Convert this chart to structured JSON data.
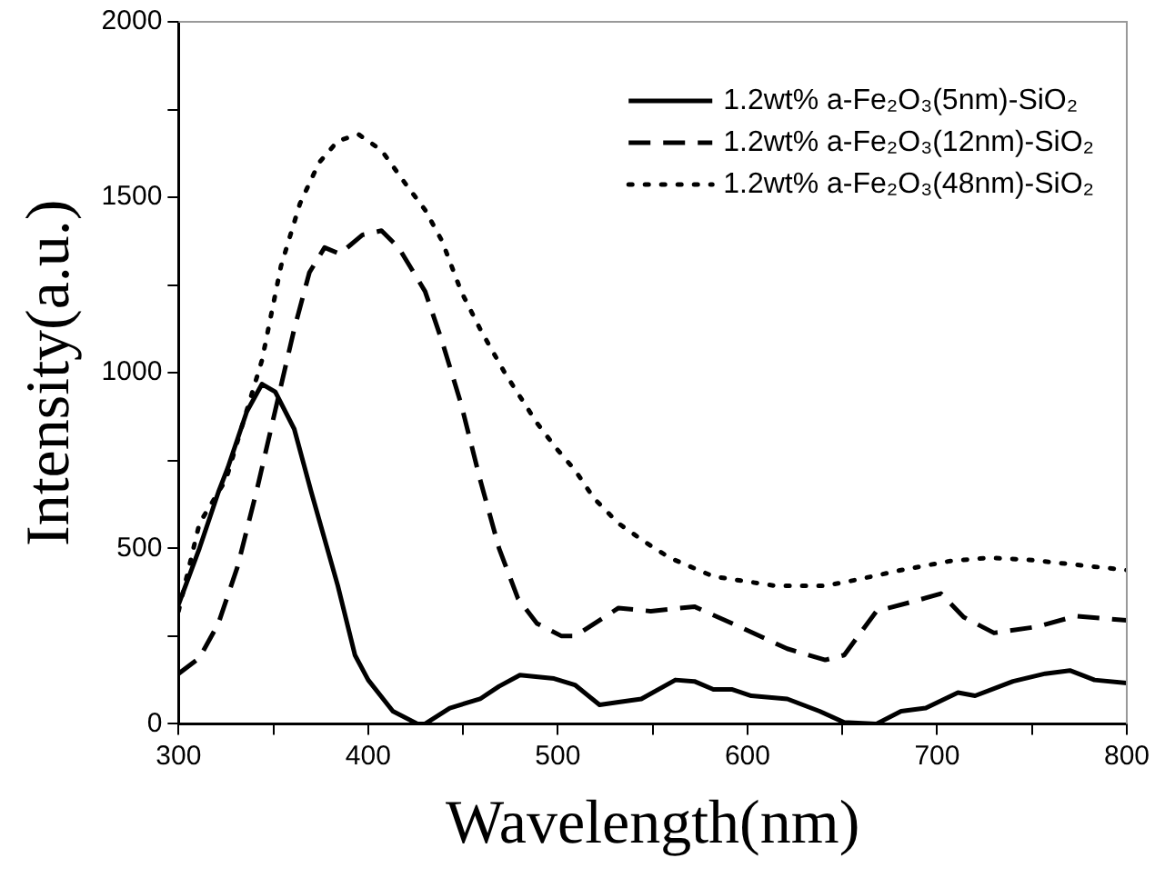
{
  "chart_data": {
    "type": "line",
    "xlabel": "Wavelength(nm)",
    "ylabel": "Intensity(a.u.)",
    "xlim": [
      300,
      800
    ],
    "xticks": [
      300,
      {
        "value": 350,
        "label": null
      },
      400,
      {
        "value": 450,
        "label": null
      },
      500,
      {
        "value": 550,
        "label": null
      },
      600,
      {
        "value": 650,
        "label": null
      },
      700,
      {
        "value": 750,
        "label": null
      },
      800
    ],
    "ylim": [
      0,
      2000
    ],
    "yticks": [
      0,
      {
        "value": 250,
        "label": null
      },
      500,
      {
        "value": 750,
        "label": null
      },
      1000,
      {
        "value": 1250,
        "label": null
      },
      1500,
      {
        "value": 1750,
        "label": null
      },
      2000
    ],
    "grid": false,
    "legend": "top right",
    "marker": "none",
    "series": [
      {
        "name": "1.2wt% a-Fe₂O₃(5nm)-SiO₂",
        "color": "#000000",
        "line_style": "solid",
        "x": [
          300,
          311,
          321,
          326,
          336,
          344,
          351,
          361,
          370,
          384,
          393,
          400,
          413,
          426,
          430,
          443,
          459,
          469,
          480,
          498,
          509,
          522,
          532,
          544,
          562,
          572,
          582,
          592,
          602,
          621,
          638,
          651,
          668,
          681,
          694,
          711,
          720,
          740,
          757,
          770,
          783,
          800
        ],
        "values": [
          340,
          500,
          660,
          730,
          890,
          968,
          946,
          840,
          660,
          393,
          196,
          125,
          36,
          0,
          0,
          45,
          71,
          107,
          139,
          129,
          111,
          54,
          62,
          71,
          125,
          121,
          98,
          98,
          80,
          71,
          36,
          4,
          0,
          36,
          45,
          89,
          80,
          121,
          143,
          152,
          125,
          116
        ]
      },
      {
        "name": "1.2wt% a-Fe₂O₃(12nm)-SiO₂",
        "color": "#000000",
        "line_style": "dashed",
        "x": [
          300,
          311,
          321,
          331,
          341,
          351,
          361,
          369,
          377,
          385,
          397,
          407,
          416,
          430,
          439,
          449,
          459,
          469,
          479,
          489,
          502,
          509,
          532,
          549,
          572,
          592,
          621,
          641,
          651,
          668,
          687,
          702,
          714,
          730,
          753,
          773,
          800
        ],
        "values": [
          143,
          188,
          286,
          446,
          660,
          893,
          1125,
          1286,
          1357,
          1339,
          1393,
          1405,
          1357,
          1232,
          1089,
          911,
          696,
          500,
          357,
          286,
          250,
          250,
          330,
          321,
          334,
          286,
          214,
          182,
          196,
          321,
          348,
          371,
          304,
          259,
          277,
          307,
          295
        ]
      },
      {
        "name": "1.2wt% a-Fe₂O₃(48nm)-SiO₂",
        "color": "#000000",
        "line_style": "dotted",
        "x": [
          300,
          311,
          325,
          338,
          344,
          354,
          364,
          374,
          384,
          395,
          407,
          420,
          430,
          439,
          449,
          459,
          472,
          489,
          499,
          509,
          519,
          532,
          546,
          559,
          582,
          615,
          641,
          658,
          681,
          707,
          727,
          747,
          770,
          800
        ],
        "values": [
          321,
          571,
          696,
          929,
          1036,
          1304,
          1482,
          1598,
          1661,
          1679,
          1634,
          1536,
          1464,
          1375,
          1232,
          1125,
          1000,
          857,
          786,
          723,
          643,
          571,
          518,
          473,
          420,
          393,
          393,
          411,
          438,
          464,
          473,
          468,
          455,
          438
        ]
      }
    ]
  }
}
